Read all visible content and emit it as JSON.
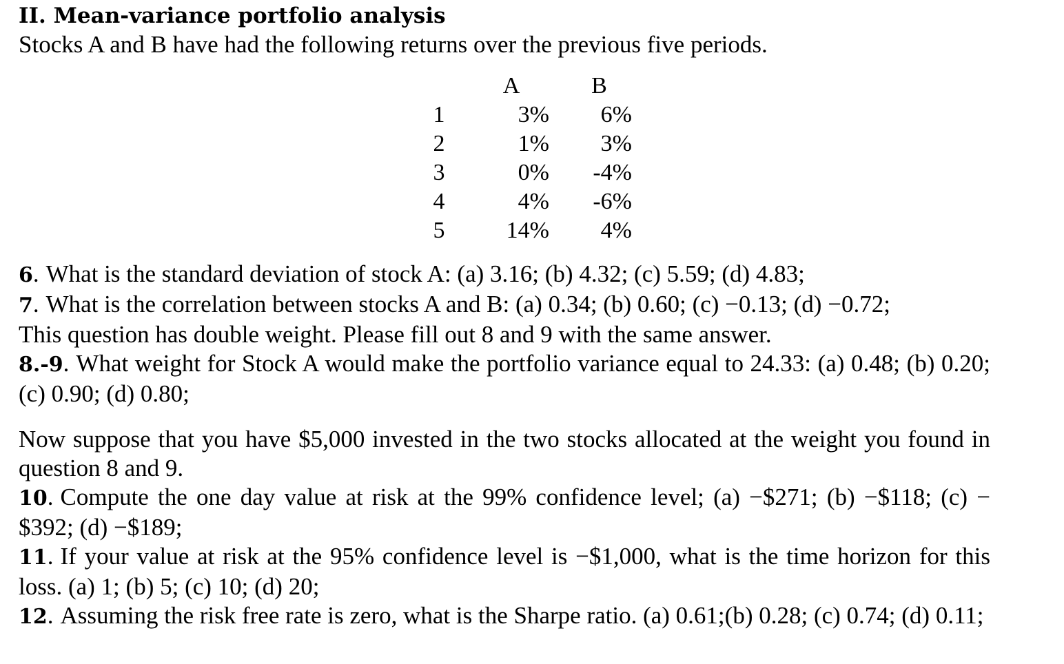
{
  "header": {
    "title": "II. Mean-variance portfolio analysis",
    "intro": "Stocks A and B have had the following returns over the previous five periods."
  },
  "returns_table": {
    "columns": [
      "A",
      "B"
    ],
    "rows": [
      {
        "period": "1",
        "a": "3%",
        "b": "6%"
      },
      {
        "period": "2",
        "a": "1%",
        "b": "3%"
      },
      {
        "period": "3",
        "a": "0%",
        "b": "-4%"
      },
      {
        "period": "4",
        "a": "4%",
        "b": "-6%"
      },
      {
        "period": "5",
        "a": "14%",
        "b": "4%"
      }
    ]
  },
  "questions": {
    "q6_num": "6",
    "q6_text": "What is the standard deviation of stock A: (a) 3.16; (b) 4.32; (c) 5.59; (d) 4.83;",
    "q7_num": "7",
    "q7_text": "What is the correlation between stocks A and B: (a) 0.34; (b) 0.60; (c) −0.13; (d) −0.72;",
    "note": "This question has double weight. Please fill out 8 and 9 with the same answer.",
    "q89_num": "8.-9",
    "q89_text": "What weight for Stock A would make the portfolio variance equal to 24.33: (a) 0.48; (b) 0.20; (c) 0.90; (d) 0.80;",
    "scenario": "Now suppose that you have $5,000 invested in the two stocks allocated at the weight you found in question 8 and 9.",
    "q10_num": "10",
    "q10_text": "Compute the one day value at risk at the 99% confidence level; (a) −$271; (b) −$118; (c) −$392; (d) −$189;",
    "q11_num": "11",
    "q11_text": "If your value at risk at the 95% confidence level is −$1,000, what is the time horizon for this loss. (a) 1; (b) 5; (c) 10; (d) 20;",
    "q12_num": "12",
    "q12_text": "Assuming the risk free rate is zero, what is the Sharpe ratio. (a) 0.61;(b) 0.28; (c) 0.74; (d) 0.11;"
  }
}
